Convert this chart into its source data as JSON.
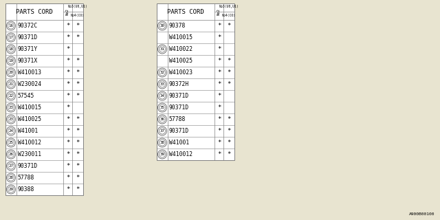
{
  "bg_color": "#e8e4d0",
  "line_color": "#808080",
  "text_color": "#000000",
  "watermark": "A900B00100",
  "left_table": {
    "header": "PARTS CORD",
    "rows": [
      {
        "num": "16",
        "part": "90372C",
        "c2": "*",
        "c3": "*"
      },
      {
        "num": "17",
        "part": "90371D",
        "c2": "*",
        "c3": "*"
      },
      {
        "num": "18",
        "part": "90371Y",
        "c2": "*",
        "c3": ""
      },
      {
        "num": "19",
        "part": "90371X",
        "c2": "*",
        "c3": "*"
      },
      {
        "num": "20",
        "part": "W410013",
        "c2": "*",
        "c3": "*"
      },
      {
        "num": "21",
        "part": "W230024",
        "c2": "*",
        "c3": "*"
      },
      {
        "num": "22",
        "part": "57545",
        "c2": "*",
        "c3": "*"
      },
      {
        "num": "23",
        "part": "W410015",
        "c2": "*",
        "c3": ""
      },
      {
        "num": "23",
        "part": "W410025",
        "c2": "*",
        "c3": "*"
      },
      {
        "num": "24",
        "part": "W41001",
        "c2": "*",
        "c3": "*"
      },
      {
        "num": "25",
        "part": "W410012",
        "c2": "*",
        "c3": "*"
      },
      {
        "num": "26",
        "part": "W230011",
        "c2": "*",
        "c3": "*"
      },
      {
        "num": "27",
        "part": "90371D",
        "c2": "*",
        "c3": "*"
      },
      {
        "num": "28",
        "part": "57788",
        "c2": "*",
        "c3": "*"
      },
      {
        "num": "29",
        "part": "90388",
        "c2": "*",
        "c3": "*"
      }
    ]
  },
  "right_table": {
    "header": "PARTS CORD",
    "rows": [
      {
        "num": "30",
        "part": "90378",
        "c2": "*",
        "c3": "*"
      },
      {
        "num": "",
        "part": "W410015",
        "c2": "*",
        "c3": ""
      },
      {
        "num": "31",
        "part": "W410022",
        "c2": "*",
        "c3": ""
      },
      {
        "num": "",
        "part": "W410025",
        "c2": "*",
        "c3": "*"
      },
      {
        "num": "32",
        "part": "W410023",
        "c2": "*",
        "c3": "*"
      },
      {
        "num": "33",
        "part": "90372H",
        "c2": "*",
        "c3": "*"
      },
      {
        "num": "34",
        "part": "90371D",
        "c2": "*",
        "c3": ""
      },
      {
        "num": "35",
        "part": "90371D",
        "c2": "*",
        "c3": ""
      },
      {
        "num": "36",
        "part": "57788",
        "c2": "*",
        "c3": "*"
      },
      {
        "num": "37",
        "part": "90371D",
        "c2": "*",
        "c3": "*"
      },
      {
        "num": "38",
        "part": "W41001",
        "c2": "*",
        "c3": "*"
      },
      {
        "num": "39",
        "part": "W410012",
        "c2": "*",
        "c3": "*"
      }
    ]
  }
}
